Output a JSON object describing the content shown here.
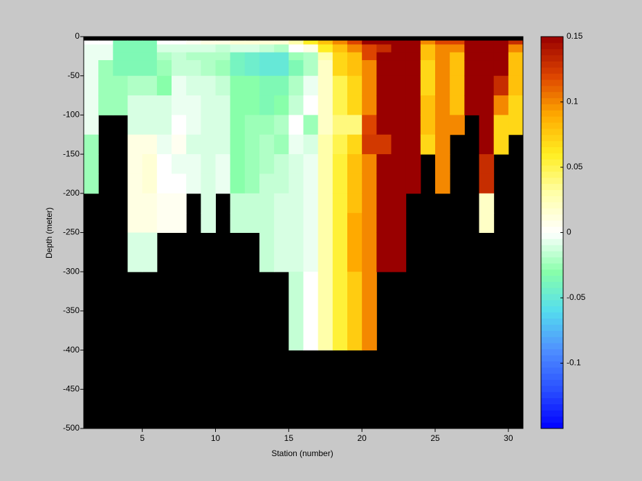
{
  "chart_data": {
    "type": "heatmap",
    "xlabel": "Station (number)",
    "ylabel": "Depth (meter)",
    "x": [
      1,
      2,
      3,
      4,
      5,
      6,
      7,
      8,
      9,
      10,
      11,
      12,
      13,
      14,
      15,
      16,
      17,
      18,
      19,
      20,
      21,
      22,
      23,
      24,
      25,
      26,
      27,
      28,
      29,
      30
    ],
    "y_edges": [
      -5,
      -10,
      -20,
      -30,
      -50,
      -75,
      -100,
      -125,
      -150,
      -175,
      -200,
      -225,
      -250,
      -300,
      -400
    ],
    "values": [
      [
        0,
        -0.005,
        -0.005,
        -0.005,
        -0.005,
        -0.005,
        -0.005,
        -0.025,
        -0.025,
        -0.025,
        null,
        null,
        null,
        null
      ],
      [
        0,
        -0.005,
        -0.005,
        -0.025,
        -0.025,
        -0.025,
        null,
        null,
        null,
        null,
        null,
        null,
        null,
        null
      ],
      [
        -0.035,
        -0.035,
        -0.035,
        -0.035,
        -0.025,
        -0.025,
        null,
        null,
        null,
        null,
        null,
        null,
        null,
        null
      ],
      [
        -0.035,
        -0.035,
        -0.035,
        -0.035,
        -0.02,
        -0.01,
        -0.01,
        0.01,
        0.01,
        0.01,
        0.01,
        0.01,
        -0.01,
        null
      ],
      [
        -0.035,
        -0.035,
        -0.035,
        -0.035,
        -0.02,
        -0.01,
        -0.01,
        0.01,
        0.015,
        0.015,
        0.01,
        0.01,
        -0.01,
        null
      ],
      [
        0,
        -0.01,
        -0.02,
        -0.025,
        -0.03,
        -0.01,
        -0.01,
        -0.005,
        0,
        0,
        0.005,
        0.005,
        null,
        null
      ],
      [
        0,
        -0.01,
        -0.015,
        -0.015,
        -0.005,
        -0.005,
        0,
        0.005,
        -0.005,
        0,
        0.005,
        0.005,
        null,
        null
      ],
      [
        0.005,
        -0.01,
        -0.02,
        -0.015,
        -0.01,
        -0.005,
        -0.005,
        -0.01,
        -0.005,
        -0.005,
        null,
        null,
        null,
        null
      ],
      [
        0.01,
        -0.01,
        -0.02,
        -0.02,
        -0.01,
        -0.01,
        -0.01,
        -0.01,
        -0.01,
        -0.01,
        -0.01,
        -0.01,
        null,
        null
      ],
      [
        0.01,
        -0.015,
        -0.02,
        -0.025,
        -0.015,
        -0.01,
        -0.01,
        -0.01,
        -0.005,
        -0.005,
        null,
        null,
        null,
        null
      ],
      [
        0.015,
        -0.01,
        -0.04,
        -0.04,
        -0.03,
        -0.03,
        -0.03,
        -0.03,
        -0.03,
        -0.03,
        -0.015,
        -0.015,
        null,
        null
      ],
      [
        0.015,
        -0.01,
        -0.045,
        -0.045,
        -0.03,
        -0.03,
        -0.025,
        -0.025,
        -0.025,
        -0.025,
        -0.015,
        -0.015,
        null,
        null
      ],
      [
        0.015,
        -0.015,
        -0.05,
        -0.05,
        -0.035,
        -0.035,
        -0.025,
        -0.02,
        -0.02,
        -0.015,
        -0.015,
        -0.015,
        -0.015,
        null
      ],
      [
        0.015,
        -0.02,
        -0.05,
        -0.05,
        -0.035,
        -0.03,
        -0.02,
        -0.025,
        -0.015,
        -0.015,
        -0.01,
        -0.01,
        -0.01,
        null
      ],
      [
        0.03,
        0,
        -0.025,
        -0.035,
        -0.02,
        -0.015,
        0,
        -0.005,
        -0.01,
        -0.01,
        -0.01,
        -0.01,
        -0.01,
        -0.015
      ],
      [
        0.06,
        0.01,
        -0.02,
        -0.02,
        -0.005,
        0,
        -0.025,
        -0.01,
        -0.005,
        -0.005,
        -0.005,
        -0.005,
        -0.005,
        0
      ],
      [
        0.08,
        0.06,
        0.03,
        0.02,
        0.02,
        0.02,
        0.02,
        0.03,
        0.03,
        0.03,
        0.03,
        0.03,
        0.03,
        0.03
      ],
      [
        0.1,
        0.08,
        0.07,
        0.07,
        0.05,
        0.05,
        0.04,
        0.05,
        0.055,
        0.055,
        0.055,
        0.055,
        0.055,
        0.055
      ],
      [
        0.12,
        0.1,
        0.08,
        0.08,
        0.07,
        0.07,
        0.04,
        0.07,
        0.08,
        0.08,
        0.08,
        0.09,
        0.09,
        0.075
      ],
      [
        0.15,
        0.12,
        0.12,
        0.1,
        0.1,
        0.1,
        0.12,
        0.125,
        0.1,
        0.1,
        0.1,
        0.1,
        0.1,
        0.1
      ],
      [
        0.15,
        0.13,
        0.15,
        0.15,
        0.15,
        0.15,
        0.15,
        0.125,
        0.15,
        0.15,
        0.15,
        0.15,
        0.15,
        null
      ],
      [
        0.15,
        0.15,
        0.15,
        0.15,
        0.15,
        0.15,
        0.15,
        0.15,
        0.15,
        0.15,
        0.15,
        0.15,
        0.15,
        null
      ],
      [
        0.15,
        0.15,
        0.15,
        0.15,
        0.15,
        0.15,
        0.15,
        0.15,
        0.15,
        0.15,
        null,
        null,
        null,
        null
      ],
      [
        0.1,
        0.08,
        0.08,
        0.07,
        0.07,
        0.08,
        0.08,
        0.07,
        null,
        null,
        null,
        null,
        null,
        null
      ],
      [
        0.12,
        0.1,
        0.1,
        0.1,
        0.1,
        0.1,
        0.1,
        0.1,
        0.1,
        0.1,
        null,
        null,
        null,
        null
      ],
      [
        0.12,
        0.1,
        0.08,
        0.08,
        0.08,
        0.08,
        0.1,
        null,
        null,
        null,
        null,
        null,
        null,
        null
      ],
      [
        0.15,
        0.15,
        0.15,
        0.15,
        0.15,
        0.15,
        null,
        null,
        null,
        null,
        null,
        null,
        null,
        null
      ],
      [
        0.15,
        0.15,
        0.15,
        0.15,
        0.15,
        0.15,
        0.15,
        0.15,
        0.13,
        0.13,
        0.02,
        0.02,
        null,
        null
      ],
      [
        0.15,
        0.15,
        0.15,
        0.15,
        0.13,
        0.1,
        0.07,
        0.07,
        null,
        null,
        null,
        null,
        null,
        null
      ],
      [
        0.13,
        0.1,
        0.08,
        0.08,
        0.08,
        0.07,
        0.07,
        null,
        null,
        null,
        null,
        null,
        null,
        null
      ]
    ],
    "xlim": [
      1,
      31
    ],
    "ylim": [
      -500,
      0
    ],
    "xticks": [
      5,
      10,
      15,
      20,
      25,
      30
    ],
    "yticks": [
      0,
      -50,
      -100,
      -150,
      -200,
      -250,
      -300,
      -350,
      -400,
      -450,
      -500
    ],
    "clim": [
      -0.15,
      0.15
    ],
    "cticks": [
      0.15,
      0.1,
      0.05,
      0,
      -0.05,
      -0.1
    ],
    "nan_color": "#000000",
    "colormap": [
      "#0000ff",
      "#2a50ff",
      "#4f8fff",
      "#55ddee",
      "#88ffaa",
      "#ffffff",
      "#ffffaa",
      "#ffee22",
      "#ffaa00",
      "#dd4400",
      "#990000"
    ]
  }
}
